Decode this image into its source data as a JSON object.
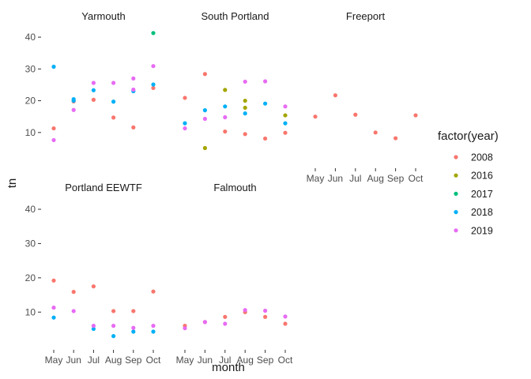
{
  "chart_data": {
    "type": "scatter",
    "facet_by": "site",
    "x": [
      "May",
      "Jun",
      "Jul",
      "Aug",
      "Sep",
      "Oct"
    ],
    "xlabel": "month",
    "ylabel": "tn",
    "ylim": [
      2,
      43
    ],
    "yticks": [
      10,
      20,
      30,
      40
    ],
    "grid": false,
    "legend": {
      "title": "factor(year)",
      "placement": "right",
      "entries": [
        {
          "label": "2008",
          "color": "#F8766D"
        },
        {
          "label": "2016",
          "color": "#A3A500"
        },
        {
          "label": "2017",
          "color": "#00BF7D"
        },
        {
          "label": "2018",
          "color": "#00B0F6"
        },
        {
          "label": "2019",
          "color": "#E76BF3"
        }
      ]
    },
    "panels": [
      {
        "title": "Yarmouth",
        "series": [
          {
            "name": "2008",
            "values": [
              11.3,
              19.8,
              20.3,
              14.7,
              11.6,
              24.0
            ]
          },
          {
            "name": "2016",
            "values": [
              null,
              null,
              null,
              null,
              null,
              null
            ]
          },
          {
            "name": "2017",
            "values": [
              null,
              null,
              null,
              null,
              null,
              41.3
            ]
          },
          {
            "name": "2018",
            "values": [
              30.7,
              20.5,
              23.3,
              19.7,
              23.0,
              25.1
            ]
          },
          {
            "name": "2019",
            "values": [
              7.6,
              17.1,
              25.6,
              25.6,
              27.0,
              30.9
            ]
          }
        ],
        "extra_points": [
          {
            "year": "2018",
            "x": "Jun",
            "y": 20.0
          },
          {
            "year": "2019",
            "x": "Sep",
            "y": 23.5
          }
        ]
      },
      {
        "title": "South Portland",
        "series": [
          {
            "name": "2008",
            "values": [
              20.9,
              28.4,
              10.3,
              9.5,
              8.1,
              9.9
            ]
          },
          {
            "name": "2016",
            "values": [
              null,
              5.1,
              23.4,
              20.0,
              null,
              15.4
            ]
          },
          {
            "name": "2017",
            "values": [
              null,
              null,
              null,
              null,
              null,
              null
            ]
          },
          {
            "name": "2018",
            "values": [
              12.9,
              17.0,
              18.2,
              16.0,
              19.1,
              12.9
            ]
          },
          {
            "name": "2019",
            "values": [
              11.3,
              14.3,
              14.8,
              26.0,
              26.1,
              18.2
            ]
          }
        ],
        "extra_points": [
          {
            "year": "2016",
            "x": "Aug",
            "y": 17.8
          }
        ]
      },
      {
        "title": "Freeport",
        "series": [
          {
            "name": "2008",
            "values": [
              15.0,
              21.7,
              15.6,
              10.0,
              8.2,
              15.4
            ]
          }
        ],
        "extra_points": []
      },
      {
        "title": "Portland EEWTF",
        "series": [
          {
            "name": "2008",
            "values": [
              19.2,
              15.9,
              17.5,
              10.3,
              10.3,
              16.0
            ]
          },
          {
            "name": "2018",
            "values": [
              8.4,
              null,
              5.1,
              3.0,
              4.3,
              4.3
            ]
          },
          {
            "name": "2019",
            "values": [
              11.3,
              10.3,
              6.0,
              6.0,
              5.4,
              6.0
            ]
          }
        ],
        "extra_points": []
      },
      {
        "title": "Falmouth",
        "series": [
          {
            "name": "2008",
            "values": [
              6.0,
              7.1,
              8.6,
              10.0,
              8.6,
              6.6
            ]
          },
          {
            "name": "2019",
            "values": [
              5.3,
              7.1,
              6.6,
              10.6,
              10.4,
              8.7
            ]
          }
        ],
        "extra_points": []
      }
    ]
  }
}
